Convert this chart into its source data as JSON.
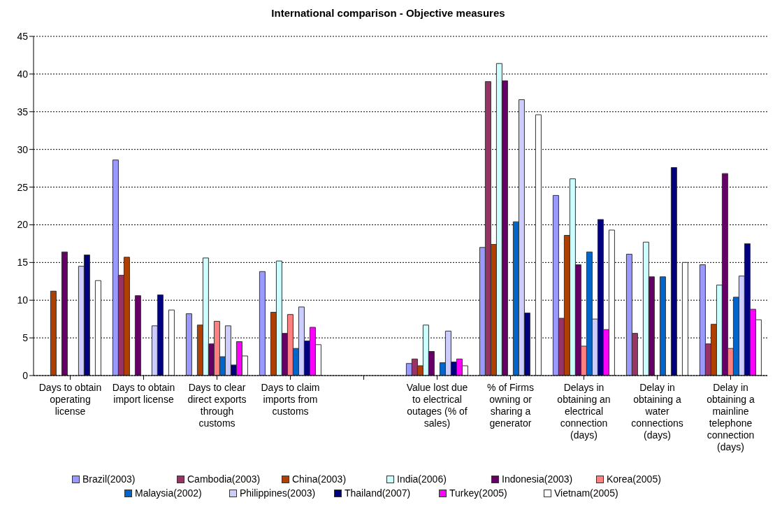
{
  "chart_data": {
    "type": "bar",
    "title": "International comparison - Objective measures",
    "categories": [
      "Days to obtain operating license",
      "Days to obtain import license",
      "Days to clear direct exports through customs",
      "Days to claim imports from customs",
      null,
      "Value lost due to electrical outages (% of sales)",
      "% of Firms owning or sharing a generator",
      "Delays in obtaining an electrical connection (days)",
      "Delay in obtaining a water connections (days)",
      "Delay in obtaining a mainline telephone connection (days)"
    ],
    "series": [
      {
        "name": "Brazil(2003)",
        "color": "#9999ff",
        "values": [
          null,
          28.6,
          8.2,
          13.8,
          null,
          1.6,
          17,
          23.9,
          16.1,
          14.7
        ]
      },
      {
        "name": "Cambodia(2003)",
        "color": "#993366",
        "values": [
          null,
          13.3,
          null,
          null,
          null,
          2.2,
          39,
          7.6,
          5.6,
          4.2
        ]
      },
      {
        "name": "China(2003)",
        "color": "#b04000",
        "values": [
          11.2,
          15.7,
          6.7,
          8.4,
          null,
          1.3,
          17.4,
          18.6,
          null,
          6.8
        ]
      },
      {
        "name": "India(2006)",
        "color": "#ccffff",
        "values": [
          null,
          null,
          15.6,
          15.2,
          null,
          6.7,
          41.4,
          26.1,
          17.7,
          12
        ]
      },
      {
        "name": "Indonesia(2003)",
        "color": "#660066",
        "values": [
          16.4,
          10.6,
          4.2,
          5.6,
          null,
          3.2,
          39.1,
          14.7,
          13.1,
          26.8
        ]
      },
      {
        "name": "Korea(2005)",
        "color": "#ff8080",
        "values": [
          null,
          null,
          7.2,
          8.1,
          null,
          null,
          null,
          3.9,
          null,
          3.6
        ]
      },
      {
        "name": "Malaysia(2002)",
        "color": "#0066cc",
        "values": [
          null,
          null,
          2.5,
          3.6,
          null,
          1.7,
          20.4,
          16.4,
          13.1,
          10.4
        ]
      },
      {
        "name": "Philippines(2003)",
        "color": "#ccccff",
        "values": [
          14.5,
          6.6,
          6.6,
          9.1,
          null,
          5.9,
          36.6,
          7.5,
          null,
          13.2
        ]
      },
      {
        "name": "Thailand(2007)",
        "color": "#000080",
        "values": [
          16,
          10.7,
          1.4,
          4.6,
          null,
          1.8,
          8.3,
          20.7,
          27.6,
          17.5
        ]
      },
      {
        "name": "Turkey(2005)",
        "color": "#ff00ff",
        "values": [
          null,
          null,
          4.5,
          6.4,
          null,
          2.2,
          null,
          6.1,
          null,
          8.8
        ]
      },
      {
        "name": "Vietnam(2005)",
        "color": "#ffffff",
        "values": [
          12.6,
          8.7,
          2.6,
          4.1,
          null,
          1.3,
          34.6,
          19.3,
          15,
          7.4
        ]
      }
    ],
    "ylim": [
      0,
      45
    ],
    "yticks": [
      0,
      5,
      10,
      15,
      20,
      25,
      30,
      35,
      40,
      45
    ],
    "grid": "y",
    "legend": "bottom"
  }
}
